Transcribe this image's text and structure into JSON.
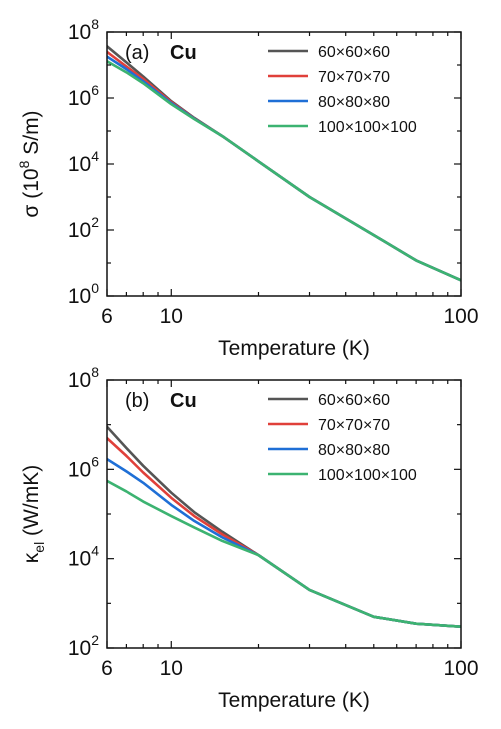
{
  "chart_data": [
    {
      "type": "line",
      "panel_label": "(a)",
      "material": "Cu",
      "title": "",
      "xlabel": "Temperature (K)",
      "ylabel": "σ (10^8 S/m)",
      "x_scale": "log",
      "y_scale": "log",
      "xlim": [
        6,
        100
      ],
      "ylim": [
        1,
        100000000
      ],
      "x_ticks": [
        {
          "value": 6,
          "label": "6"
        },
        {
          "value": 10,
          "label": "10"
        },
        {
          "value": 100,
          "label": "100"
        }
      ],
      "y_ticks": [
        {
          "value": 1,
          "base": "10",
          "exp": "0"
        },
        {
          "value": 100,
          "base": "10",
          "exp": "2"
        },
        {
          "value": 10000,
          "base": "10",
          "exp": "4"
        },
        {
          "value": 1000000,
          "base": "10",
          "exp": "6"
        },
        {
          "value": 100000000,
          "base": "10",
          "exp": "8"
        }
      ],
      "legend_position": "top-right",
      "grid": false,
      "series": [
        {
          "name": "60×60×60",
          "color": "#555555",
          "x": [
            6,
            7,
            8,
            10,
            12,
            15,
            20,
            30,
            50,
            70,
            100
          ],
          "y": [
            37000000,
            12000000,
            4500000,
            800000,
            250000,
            70000,
            12000,
            1000,
            70,
            12,
            3
          ]
        },
        {
          "name": "70×70×70",
          "color": "#e0403a",
          "x": [
            6,
            7,
            8,
            10,
            12,
            15,
            20,
            30,
            50,
            70,
            100
          ],
          "y": [
            25000000,
            9000000,
            3800000,
            750000,
            240000,
            70000,
            12000,
            1000,
            70,
            12,
            3
          ]
        },
        {
          "name": "80×80×80",
          "color": "#1f6fd6",
          "x": [
            6,
            7,
            8,
            10,
            12,
            15,
            20,
            30,
            50,
            70,
            100
          ],
          "y": [
            18000000,
            7500000,
            3200000,
            700000,
            235000,
            70000,
            12000,
            1000,
            70,
            12,
            3
          ]
        },
        {
          "name": "100×100×100",
          "color": "#3cb371",
          "x": [
            6,
            7,
            8,
            10,
            12,
            15,
            20,
            30,
            50,
            70,
            100
          ],
          "y": [
            13000000,
            6000000,
            2800000,
            650000,
            230000,
            70000,
            12000,
            1000,
            70,
            12,
            3
          ]
        }
      ]
    },
    {
      "type": "line",
      "panel_label": "(b)",
      "material": "Cu",
      "title": "",
      "xlabel": "Temperature (K)",
      "ylabel": "κel (W/mK)",
      "x_scale": "log",
      "y_scale": "log",
      "xlim": [
        6,
        100
      ],
      "ylim": [
        100,
        100000000
      ],
      "x_ticks": [
        {
          "value": 6,
          "label": "6"
        },
        {
          "value": 10,
          "label": "10"
        },
        {
          "value": 100,
          "label": "100"
        }
      ],
      "y_ticks": [
        {
          "value": 100,
          "base": "10",
          "exp": "2"
        },
        {
          "value": 10000,
          "base": "10",
          "exp": "4"
        },
        {
          "value": 1000000,
          "base": "10",
          "exp": "6"
        },
        {
          "value": 100000000,
          "base": "10",
          "exp": "8"
        }
      ],
      "legend_position": "top-right",
      "grid": false,
      "series": [
        {
          "name": "60×60×60",
          "color": "#555555",
          "x": [
            6,
            7,
            8,
            10,
            12,
            15,
            20,
            30,
            50,
            70,
            100
          ],
          "y": [
            9000000,
            3000000,
            1200000,
            300000,
            110000,
            40000,
            12000,
            2000,
            500,
            350,
            300
          ]
        },
        {
          "name": "70×70×70",
          "color": "#e0403a",
          "x": [
            6,
            7,
            8,
            10,
            12,
            15,
            20,
            30,
            50,
            70,
            100
          ],
          "y": [
            5000000,
            2000000,
            850000,
            230000,
            90000,
            35000,
            12000,
            2000,
            500,
            350,
            300
          ]
        },
        {
          "name": "80×80×80",
          "color": "#1f6fd6",
          "x": [
            6,
            7,
            8,
            10,
            12,
            15,
            20,
            30,
            50,
            70,
            100
          ],
          "y": [
            1700000,
            900000,
            500000,
            160000,
            70000,
            30000,
            12000,
            2000,
            500,
            350,
            300
          ]
        },
        {
          "name": "100×100×100",
          "color": "#3cb371",
          "x": [
            6,
            7,
            8,
            10,
            12,
            15,
            20,
            30,
            50,
            70,
            100
          ],
          "y": [
            550000,
            320000,
            190000,
            90000,
            50000,
            25000,
            12000,
            2000,
            500,
            350,
            300
          ]
        }
      ]
    }
  ]
}
